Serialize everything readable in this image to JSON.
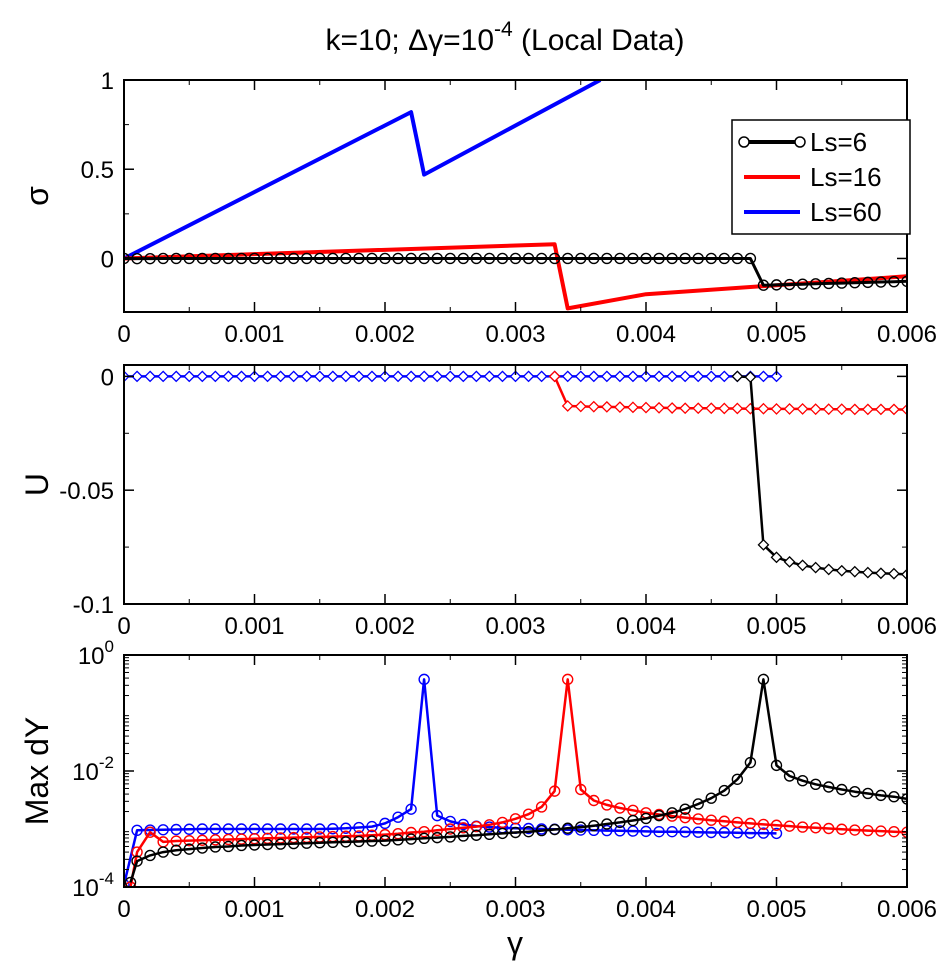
{
  "figure": {
    "title_main": "k=10; Δγ=10",
    "title_exp": "-4",
    "title_suffix": " (Local Data)",
    "xlabel": "γ"
  },
  "colors": {
    "black": "#000000",
    "red": "#ff0000",
    "blue": "#0000ff"
  },
  "legend": [
    {
      "label": "Ls=6",
      "color": "#000000",
      "marker": "circle"
    },
    {
      "label": "Ls=16",
      "color": "#ff0000",
      "marker": "none"
    },
    {
      "label": "Ls=60",
      "color": "#0000ff",
      "marker": "none"
    }
  ],
  "chart_data": [
    {
      "id": "sigma",
      "type": "line",
      "ylabel": "σ",
      "xlim": [
        0,
        0.006
      ],
      "ylim": [
        -0.3,
        1
      ],
      "xticks": [
        "0",
        "0.001",
        "0.002",
        "0.003",
        "0.004",
        "0.005",
        "0.006"
      ],
      "yticks": [
        {
          "value": 1,
          "label": "1"
        },
        {
          "value": 0.5,
          "label": "0.5"
        },
        {
          "value": 0,
          "label": "0"
        }
      ],
      "series": [
        {
          "name": "Ls=60",
          "color": "#0000ff",
          "marker": "none",
          "x": [
            0,
            0.0022,
            0.0023,
            0.00365
          ],
          "y": [
            0,
            0.82,
            0.47,
            1.0
          ]
        },
        {
          "name": "Ls=16",
          "color": "#ff0000",
          "marker": "none",
          "x": [
            0,
            0.0033,
            0.0034,
            0.004,
            0.005,
            0.006
          ],
          "y": [
            0,
            0.08,
            -0.28,
            -0.2,
            -0.15,
            -0.1
          ]
        },
        {
          "name": "Ls=6",
          "color": "#000000",
          "marker": "circle",
          "x": [
            0,
            0.0001,
            0.0002,
            0.0003,
            0.0004,
            0.0005,
            0.0006,
            0.0007,
            0.0008,
            0.0009,
            0.001,
            0.0011,
            0.0012,
            0.0013,
            0.0014,
            0.0015,
            0.0016,
            0.0017,
            0.0018,
            0.0019,
            0.002,
            0.0021,
            0.0022,
            0.0023,
            0.0024,
            0.0025,
            0.0026,
            0.0027,
            0.0028,
            0.0029,
            0.003,
            0.0031,
            0.0032,
            0.0033,
            0.0034,
            0.0035,
            0.0036,
            0.0037,
            0.0038,
            0.0039,
            0.004,
            0.0041,
            0.0042,
            0.0043,
            0.0044,
            0.0045,
            0.0046,
            0.0047,
            0.0048,
            0.0049,
            0.005,
            0.0051,
            0.0052,
            0.0053,
            0.0054,
            0.0055,
            0.0056,
            0.0057,
            0.0058,
            0.0059,
            0.006
          ],
          "y": [
            0,
            -0.001,
            -0.001,
            0,
            0,
            0,
            0,
            0,
            0,
            0,
            0,
            0,
            0,
            0,
            0,
            0,
            0,
            0,
            0,
            0,
            0,
            0,
            0,
            0,
            0,
            0,
            0,
            0,
            0,
            0,
            0,
            0,
            0,
            0,
            0,
            0,
            0,
            0,
            0,
            0,
            0,
            0,
            0,
            0,
            0,
            0,
            0,
            0,
            0,
            -0.15,
            -0.148,
            -0.146,
            -0.144,
            -0.142,
            -0.14,
            -0.138,
            -0.136,
            -0.134,
            -0.132,
            -0.13,
            -0.128
          ]
        }
      ]
    },
    {
      "id": "energy",
      "type": "line",
      "ylabel": "U",
      "xlim": [
        0,
        0.006
      ],
      "ylim": [
        -0.1,
        0.005
      ],
      "xticks": [
        "0",
        "0.001",
        "0.002",
        "0.003",
        "0.004",
        "0.005",
        "0.006"
      ],
      "yticks": [
        {
          "value": 0,
          "label": "0"
        },
        {
          "value": -0.05,
          "label": "-0.05"
        },
        {
          "value": -0.1,
          "label": "-0.1"
        }
      ],
      "series": [
        {
          "name": "Ls=60",
          "color": "#0000ff",
          "marker": "diamond",
          "x": [
            0,
            0.0001,
            0.0002,
            0.0003,
            0.0004,
            0.0005,
            0.0006,
            0.0007,
            0.0008,
            0.0009,
            0.001,
            0.0011,
            0.0012,
            0.0013,
            0.0014,
            0.0015,
            0.0016,
            0.0017,
            0.0018,
            0.0019,
            0.002,
            0.0021,
            0.0022,
            0.0023,
            0.0024,
            0.0025,
            0.0026,
            0.0027,
            0.0028,
            0.0029,
            0.003,
            0.0031,
            0.0032,
            0.0033,
            0.0034,
            0.0035,
            0.0036,
            0.0037,
            0.0038,
            0.0039,
            0.004,
            0.0041,
            0.0042,
            0.0043,
            0.0044,
            0.0045,
            0.0046,
            0.0047,
            0.0048,
            0.0049,
            0.005
          ],
          "y": [
            0,
            0,
            0,
            0,
            0,
            0,
            0,
            0,
            0,
            0,
            0,
            0,
            0,
            0,
            0,
            0,
            0,
            0,
            0,
            0,
            0,
            0,
            0,
            0,
            0,
            0,
            0,
            0,
            0,
            0,
            0,
            0,
            0,
            0,
            0,
            0,
            0,
            0,
            0,
            0,
            0,
            0,
            0,
            0,
            0,
            0,
            0,
            0,
            0,
            0,
            0
          ]
        },
        {
          "name": "Ls=16",
          "color": "#ff0000",
          "marker": "diamond",
          "x": [
            0.0033,
            0.0034,
            0.0035,
            0.0036,
            0.0037,
            0.0038,
            0.0039,
            0.004,
            0.0041,
            0.0042,
            0.0043,
            0.0044,
            0.0045,
            0.0046,
            0.0047,
            0.0048,
            0.0049,
            0.005,
            0.0051,
            0.0052,
            0.0053,
            0.0054,
            0.0055,
            0.0056,
            0.0057,
            0.0058,
            0.0059,
            0.006
          ],
          "y": [
            0,
            -0.013,
            -0.0132,
            -0.0133,
            -0.0134,
            -0.0135,
            -0.0136,
            -0.0137,
            -0.0138,
            -0.0139,
            -0.014,
            -0.014,
            -0.014,
            -0.0141,
            -0.0141,
            -0.0142,
            -0.0142,
            -0.0143,
            -0.0143,
            -0.0143,
            -0.0144,
            -0.0144,
            -0.0144,
            -0.0145,
            -0.0145,
            -0.0145,
            -0.0145,
            -0.0146
          ]
        },
        {
          "name": "Ls=6",
          "color": "#000000",
          "marker": "diamond",
          "x": [
            0.0047,
            0.0048,
            0.0049,
            0.005,
            0.0051,
            0.0052,
            0.0053,
            0.0054,
            0.0055,
            0.0056,
            0.0057,
            0.0058,
            0.0059,
            0.006
          ],
          "y": [
            0,
            -0.0003,
            -0.074,
            -0.0795,
            -0.0815,
            -0.083,
            -0.084,
            -0.0848,
            -0.0854,
            -0.0858,
            -0.0862,
            -0.0865,
            -0.0867,
            -0.087
          ]
        }
      ]
    },
    {
      "id": "maxdy",
      "type": "line",
      "ylabel": "Max dY",
      "yscale": "log",
      "xlim": [
        0,
        0.006
      ],
      "ylim": [
        0.0001,
        1
      ],
      "xticks": [
        "0",
        "0.001",
        "0.002",
        "0.003",
        "0.004",
        "0.005",
        "0.006"
      ],
      "yticks": [
        {
          "value": 1,
          "base": "10",
          "exp": "0"
        },
        {
          "value": 0.01,
          "base": "10",
          "exp": "-2"
        },
        {
          "value": 0.0001,
          "base": "10",
          "exp": "-4"
        }
      ],
      "series": [
        {
          "name": "Ls=60",
          "color": "#0000ff",
          "marker": "circle",
          "x": [
            0,
            0.0001,
            0.0002,
            0.0003,
            0.0004,
            0.0005,
            0.0006,
            0.0007,
            0.0008,
            0.0009,
            0.001,
            0.0011,
            0.0012,
            0.0013,
            0.0014,
            0.0015,
            0.0016,
            0.0017,
            0.0018,
            0.0019,
            0.002,
            0.0021,
            0.0022,
            0.0023,
            0.0024,
            0.0025,
            0.0026,
            0.0027,
            0.0028,
            0.0029,
            0.003,
            0.0031,
            0.0032,
            0.0033,
            0.0034,
            0.0035,
            0.0036,
            0.0037,
            0.0038,
            0.0039,
            0.004,
            0.0041,
            0.0042,
            0.0043,
            0.0044,
            0.0045,
            0.0046,
            0.0047,
            0.0048,
            0.0049,
            0.005
          ],
          "y": [
            0.00011,
            0.00095,
            0.00096,
            0.00097,
            0.00098,
            0.00099,
            0.001,
            0.001,
            0.001,
            0.001,
            0.001,
            0.001,
            0.001,
            0.001,
            0.001,
            0.001,
            0.00101,
            0.00103,
            0.00106,
            0.0011,
            0.00125,
            0.0016,
            0.0022,
            0.38,
            0.0017,
            0.00135,
            0.0012,
            0.00112,
            0.00108,
            0.00105,
            0.00103,
            0.00102,
            0.001,
            0.00099,
            0.00097,
            0.00096,
            0.00095,
            0.00094,
            0.00093,
            0.00092,
            0.00091,
            0.0009,
            0.0009,
            0.00089,
            0.00088,
            0.00087,
            0.00087,
            0.00086,
            0.00085,
            0.00085,
            0.00084
          ]
        },
        {
          "name": "Ls=16",
          "color": "#ff0000",
          "marker": "circle",
          "x": [
            5e-05,
            0.0001,
            0.0002,
            0.0003,
            0.0004,
            0.0005,
            0.0006,
            0.0007,
            0.0008,
            0.0009,
            0.001,
            0.0011,
            0.0012,
            0.0013,
            0.0014,
            0.0015,
            0.0016,
            0.0017,
            0.0018,
            0.0019,
            0.002,
            0.0021,
            0.0022,
            0.0023,
            0.0024,
            0.0025,
            0.0026,
            0.0027,
            0.0028,
            0.0029,
            0.003,
            0.0031,
            0.0032,
            0.0033,
            0.0034,
            0.0035,
            0.0036,
            0.0037,
            0.0038,
            0.0039,
            0.004,
            0.0041,
            0.0042,
            0.0043,
            0.0044,
            0.0045,
            0.0046,
            0.0047,
            0.0048,
            0.0049,
            0.005,
            0.0051,
            0.0052,
            0.0053,
            0.0054,
            0.0055,
            0.0056,
            0.0057,
            0.0058,
            0.0059,
            0.006
          ],
          "y": [
            0.0001,
            0.0004,
            0.00088,
            0.0006,
            0.00062,
            0.00063,
            0.00064,
            0.00065,
            0.00066,
            0.00067,
            0.00068,
            0.00069,
            0.0007,
            0.00071,
            0.00072,
            0.00073,
            0.00074,
            0.00075,
            0.00076,
            0.00078,
            0.0008,
            0.00083,
            0.00087,
            0.0009,
            0.00095,
            0.001,
            0.00105,
            0.0011,
            0.00118,
            0.0013,
            0.0015,
            0.0018,
            0.0024,
            0.0045,
            0.38,
            0.0048,
            0.0031,
            0.0026,
            0.0023,
            0.0021,
            0.0019,
            0.00178,
            0.00167,
            0.00157,
            0.00149,
            0.00142,
            0.00136,
            0.0013,
            0.00125,
            0.0012,
            0.00116,
            0.00112,
            0.00108,
            0.00105,
            0.00102,
            0.00099,
            0.00096,
            0.00094,
            0.00092,
            0.0009,
            0.00088
          ]
        },
        {
          "name": "Ls=6",
          "color": "#000000",
          "marker": "circle",
          "x": [
            5e-05,
            0.0001,
            0.0002,
            0.0003,
            0.0004,
            0.0005,
            0.0006,
            0.0007,
            0.0008,
            0.0009,
            0.001,
            0.0011,
            0.0012,
            0.0013,
            0.0014,
            0.0015,
            0.0016,
            0.0017,
            0.0018,
            0.0019,
            0.002,
            0.0021,
            0.0022,
            0.0023,
            0.0024,
            0.0025,
            0.0026,
            0.0027,
            0.0028,
            0.0029,
            0.003,
            0.0031,
            0.0032,
            0.0033,
            0.0034,
            0.0035,
            0.0036,
            0.0037,
            0.0038,
            0.0039,
            0.004,
            0.0041,
            0.0042,
            0.0043,
            0.0044,
            0.0045,
            0.0046,
            0.0047,
            0.0048,
            0.0049,
            0.005,
            0.0051,
            0.0052,
            0.0053,
            0.0054,
            0.0055,
            0.0056,
            0.0057,
            0.0058,
            0.0059,
            0.006
          ],
          "y": [
            0.00012,
            0.00028,
            0.00035,
            0.0004,
            0.00043,
            0.00045,
            0.00047,
            0.00049,
            0.0005,
            0.00052,
            0.00053,
            0.00054,
            0.00055,
            0.00056,
            0.00057,
            0.00058,
            0.00059,
            0.0006,
            0.00061,
            0.00062,
            0.00063,
            0.00065,
            0.00067,
            0.00069,
            0.00071,
            0.00073,
            0.00076,
            0.00078,
            0.00081,
            0.00084,
            0.00087,
            0.0009,
            0.00094,
            0.00098,
            0.00103,
            0.00108,
            0.00114,
            0.00122,
            0.0013,
            0.0014,
            0.00152,
            0.0017,
            0.0019,
            0.0022,
            0.0027,
            0.0034,
            0.0046,
            0.0072,
            0.014,
            0.38,
            0.0125,
            0.0082,
            0.0068,
            0.0059,
            0.0053,
            0.0048,
            0.0044,
            0.0041,
            0.0038,
            0.0036,
            0.0033
          ]
        }
      ]
    }
  ]
}
